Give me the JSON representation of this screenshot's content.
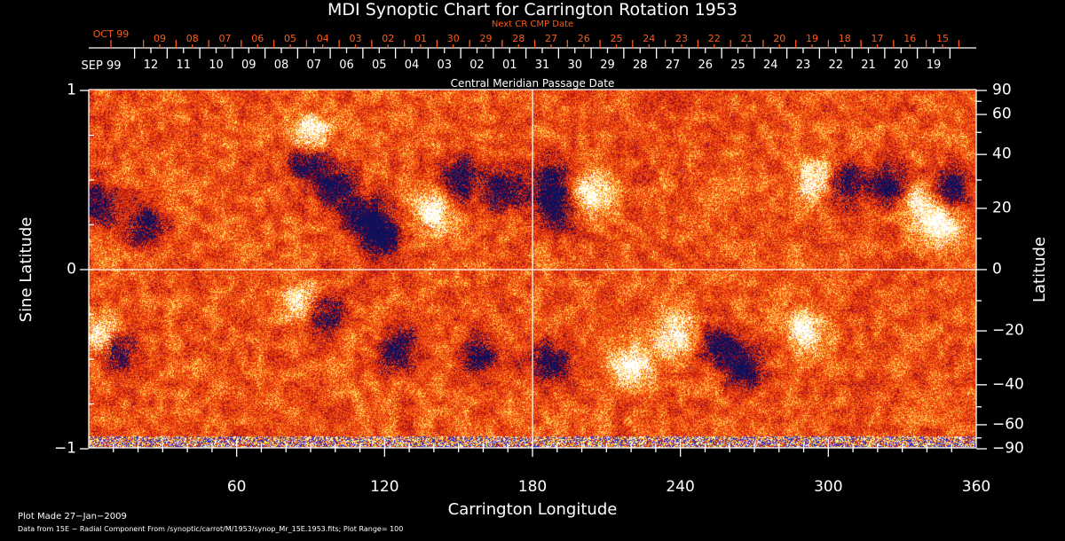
{
  "chart_data": {
    "type": "heatmap",
    "title": "MDI Synoptic Chart for Carrington Rotation 1953",
    "xlabel": "Carrington Longitude",
    "ylabel_left": "Sine Latitude",
    "ylabel_right": "Latitude",
    "xlim": [
      0,
      360
    ],
    "ylim_sine": [
      -1,
      1
    ],
    "x_ticks": [
      "60",
      "120",
      "180",
      "240",
      "300",
      "360"
    ],
    "y_ticks_left": [
      "1",
      "0",
      "−1"
    ],
    "y_ticks_right": [
      "90",
      "60",
      "40",
      "20",
      "0",
      "−20",
      "−40",
      "−60",
      "−90"
    ],
    "top_axis": {
      "label": "Central Meridian Passage Date",
      "start_label": "SEP 99",
      "dates": [
        "12",
        "11",
        "10",
        "09",
        "08",
        "07",
        "06",
        "05",
        "04",
        "03",
        "02",
        "01",
        "31",
        "30",
        "29",
        "28",
        "27",
        "26",
        "25",
        "24",
        "23",
        "22",
        "21",
        "20",
        "19"
      ]
    },
    "next_cr_axis": {
      "label": "Next CR CMP Date",
      "start_label": "OCT 99",
      "dates": [
        "09",
        "08",
        "07",
        "06",
        "05",
        "04",
        "03",
        "02",
        "01",
        "30",
        "29",
        "28",
        "27",
        "26",
        "25",
        "24",
        "23",
        "22",
        "21",
        "20",
        "19",
        "18",
        "17",
        "16",
        "15"
      ]
    },
    "colormap": {
      "negative": "#10105a",
      "background": "#e8400f",
      "positive": "#ffffff",
      "mid_positive": "#ffe060"
    },
    "plot_range": 100,
    "regions": [
      {
        "lon": 5,
        "sinlat": -0.38,
        "polarity": 1
      },
      {
        "lon": 11,
        "sinlat": -0.45,
        "polarity": -1
      },
      {
        "lon": 2,
        "sinlat": 0.37,
        "polarity": -1
      },
      {
        "lon": 23,
        "sinlat": 0.24,
        "polarity": -1
      },
      {
        "lon": 88,
        "sinlat": 0.6,
        "polarity": -1
      },
      {
        "lon": 100,
        "sinlat": 0.45,
        "polarity": -1
      },
      {
        "lon": 112,
        "sinlat": 0.3,
        "polarity": -1
      },
      {
        "lon": 119,
        "sinlat": 0.18,
        "polarity": -1
      },
      {
        "lon": 140,
        "sinlat": 0.32,
        "polarity": 1
      },
      {
        "lon": 150,
        "sinlat": 0.5,
        "polarity": -1
      },
      {
        "lon": 168,
        "sinlat": 0.45,
        "polarity": -1
      },
      {
        "lon": 94,
        "sinlat": -0.25,
        "polarity": -1
      },
      {
        "lon": 86,
        "sinlat": -0.2,
        "polarity": 1
      },
      {
        "lon": 125,
        "sinlat": -0.45,
        "polarity": -1
      },
      {
        "lon": 158,
        "sinlat": -0.48,
        "polarity": -1
      },
      {
        "lon": 187,
        "sinlat": 0.5,
        "polarity": -1
      },
      {
        "lon": 190,
        "sinlat": 0.33,
        "polarity": -1
      },
      {
        "lon": 203,
        "sinlat": 0.42,
        "polarity": 1
      },
      {
        "lon": 187,
        "sinlat": -0.53,
        "polarity": -1
      },
      {
        "lon": 220,
        "sinlat": -0.53,
        "polarity": 1
      },
      {
        "lon": 238,
        "sinlat": -0.36,
        "polarity": 1
      },
      {
        "lon": 256,
        "sinlat": -0.42,
        "polarity": -1
      },
      {
        "lon": 266,
        "sinlat": -0.55,
        "polarity": -1
      },
      {
        "lon": 290,
        "sinlat": -0.35,
        "polarity": 1
      },
      {
        "lon": 306,
        "sinlat": 0.48,
        "polarity": -1
      },
      {
        "lon": 325,
        "sinlat": 0.45,
        "polarity": -1
      },
      {
        "lon": 349,
        "sinlat": 0.45,
        "polarity": -1
      },
      {
        "lon": 337,
        "sinlat": 0.36,
        "polarity": 1
      },
      {
        "lon": 346,
        "sinlat": 0.24,
        "polarity": 1
      },
      {
        "lon": 295,
        "sinlat": 0.5,
        "polarity": 1
      },
      {
        "lon": 90,
        "sinlat": 0.75,
        "polarity": 1
      }
    ]
  },
  "footer": {
    "plot_made": "Plot Made 27−Jan−2009",
    "data_source": "Data from 15E − Radial Component From /synoptic/carrot/M/1953/synop_Mr_15E.1953.fits; Plot Range=   100"
  }
}
